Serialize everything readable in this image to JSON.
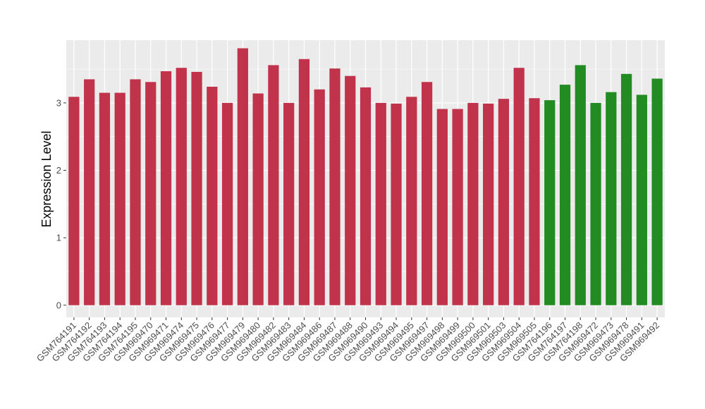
{
  "chart_data": {
    "type": "bar",
    "title": "",
    "xlabel": "",
    "ylabel": "Expression Level",
    "ylim": [
      -0.18,
      3.93
    ],
    "y_ticks": [
      0,
      1,
      2,
      3
    ],
    "grid": true,
    "legend": "none",
    "colors": {
      "group_a": "#C0334A",
      "group_b": "#228B22",
      "panel_bg": "#EBEBEB",
      "grid": "#FFFFFF"
    },
    "categories": [
      "GSM764191",
      "GSM764192",
      "GSM764193",
      "GSM764194",
      "GSM764195",
      "GSM969470",
      "GSM969471",
      "GSM969474",
      "GSM969475",
      "GSM969476",
      "GSM969477",
      "GSM969479",
      "GSM969480",
      "GSM969482",
      "GSM969483",
      "GSM969484",
      "GSM969486",
      "GSM969487",
      "GSM969488",
      "GSM969490",
      "GSM969493",
      "GSM969494",
      "GSM969495",
      "GSM969497",
      "GSM969498",
      "GSM969499",
      "GSM969500",
      "GSM969501",
      "GSM969503",
      "GSM969504",
      "GSM969505",
      "GSM764196",
      "GSM764197",
      "GSM764198",
      "GSM969472",
      "GSM969473",
      "GSM969478",
      "GSM969491",
      "GSM969492"
    ],
    "values": [
      3.09,
      3.35,
      3.15,
      3.15,
      3.35,
      3.31,
      3.47,
      3.52,
      3.46,
      3.24,
      3.0,
      3.81,
      3.14,
      3.56,
      3.0,
      3.65,
      3.2,
      3.51,
      3.4,
      3.23,
      3.0,
      2.99,
      3.09,
      3.31,
      2.91,
      2.91,
      3.0,
      2.99,
      3.06,
      3.52,
      3.07,
      3.04,
      3.27,
      3.56,
      3.0,
      3.16,
      3.43,
      3.12,
      3.36
    ],
    "groups": [
      "a",
      "a",
      "a",
      "a",
      "a",
      "a",
      "a",
      "a",
      "a",
      "a",
      "a",
      "a",
      "a",
      "a",
      "a",
      "a",
      "a",
      "a",
      "a",
      "a",
      "a",
      "a",
      "a",
      "a",
      "a",
      "a",
      "a",
      "a",
      "a",
      "a",
      "a",
      "b",
      "b",
      "b",
      "b",
      "b",
      "b",
      "b",
      "b"
    ]
  }
}
